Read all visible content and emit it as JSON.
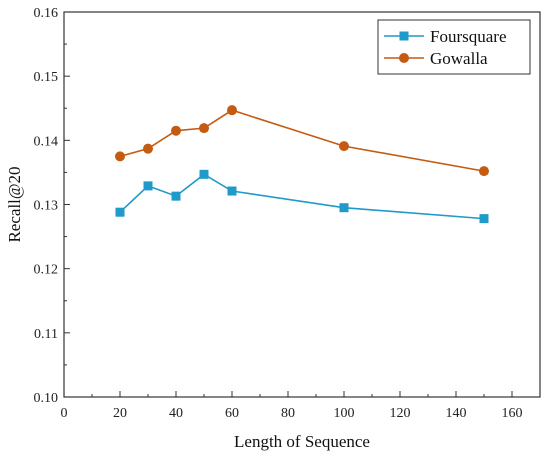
{
  "chart_data": {
    "type": "line",
    "title": "",
    "xlabel": "Length of Sequence",
    "ylabel": "Recall@20",
    "xlim": [
      0,
      170
    ],
    "ylim": [
      0.1,
      0.16
    ],
    "xticks": [
      0,
      20,
      40,
      60,
      80,
      100,
      120,
      140,
      160
    ],
    "xtick_labels": [
      "0",
      "20",
      "40",
      "60",
      "80",
      "100",
      "120",
      "140",
      "160"
    ],
    "yticks": [
      0.1,
      0.11,
      0.12,
      0.13,
      0.14,
      0.15,
      0.16
    ],
    "ytick_labels": [
      "0.10",
      "0.11",
      "0.12",
      "0.13",
      "0.14",
      "0.15",
      "0.16"
    ],
    "grid": false,
    "legend": "top-right",
    "series": [
      {
        "name": "Foursquare",
        "color": "#1f9ac9",
        "marker": "square",
        "x": [
          20,
          30,
          40,
          50,
          60,
          100,
          150
        ],
        "y": [
          0.1288,
          0.1329,
          0.1313,
          0.1347,
          0.1321,
          0.1295,
          0.1278
        ]
      },
      {
        "name": "Gowalla",
        "color": "#c55a11",
        "marker": "circle",
        "x": [
          20,
          30,
          40,
          50,
          60,
          100,
          150
        ],
        "y": [
          0.1375,
          0.1387,
          0.1415,
          0.1419,
          0.1447,
          0.1391,
          0.1352
        ]
      }
    ]
  }
}
